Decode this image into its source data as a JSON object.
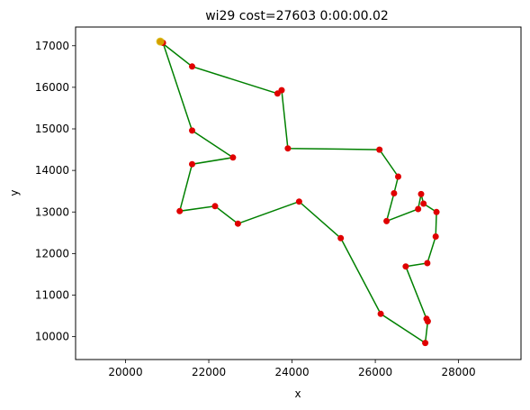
{
  "chart_data": {
    "type": "line",
    "title": "wi29 cost=27603 0:00:00.02",
    "xlabel": "x",
    "ylabel": "y",
    "xlim": [
      18800,
      29500
    ],
    "ylim": [
      9450,
      17450
    ],
    "xticks": [
      20000,
      22000,
      24000,
      26000,
      28000
    ],
    "xtick_labels": [
      "20000",
      "22000",
      "24000",
      "26000",
      "28000"
    ],
    "yticks": [
      10000,
      11000,
      12000,
      13000,
      14000,
      15000,
      16000,
      17000
    ],
    "ytick_labels": [
      "10000",
      "11000",
      "12000",
      "13000",
      "14000",
      "15000",
      "16000",
      "17000"
    ],
    "grid": false,
    "line_color": "#008000",
    "point_color": "#e00000",
    "start_color": "#d4b800",
    "start": {
      "x": 20833,
      "y": 17100
    },
    "tour": [
      {
        "x": 20833,
        "y": 17100
      },
      {
        "x": 21600,
        "y": 16500
      },
      {
        "x": 23650,
        "y": 15850
      },
      {
        "x": 23750,
        "y": 15930
      },
      {
        "x": 23900,
        "y": 14530
      },
      {
        "x": 26100,
        "y": 14500
      },
      {
        "x": 26550,
        "y": 13850
      },
      {
        "x": 26450,
        "y": 13450
      },
      {
        "x": 26270,
        "y": 12780
      },
      {
        "x": 27030,
        "y": 13070
      },
      {
        "x": 27100,
        "y": 13430
      },
      {
        "x": 27160,
        "y": 13200
      },
      {
        "x": 27470,
        "y": 13000
      },
      {
        "x": 27450,
        "y": 12410
      },
      {
        "x": 27250,
        "y": 11770
      },
      {
        "x": 26730,
        "y": 11690
      },
      {
        "x": 27230,
        "y": 10430
      },
      {
        "x": 27260,
        "y": 10370
      },
      {
        "x": 27200,
        "y": 9850
      },
      {
        "x": 26130,
        "y": 10550
      },
      {
        "x": 25170,
        "y": 12370
      },
      {
        "x": 24170,
        "y": 13250
      },
      {
        "x": 22700,
        "y": 12720
      },
      {
        "x": 22150,
        "y": 13140
      },
      {
        "x": 21300,
        "y": 13020
      },
      {
        "x": 21600,
        "y": 14150
      },
      {
        "x": 22580,
        "y": 14310
      },
      {
        "x": 21600,
        "y": 14960
      },
      {
        "x": 20900,
        "y": 17070
      },
      {
        "x": 20833,
        "y": 17100
      }
    ]
  }
}
